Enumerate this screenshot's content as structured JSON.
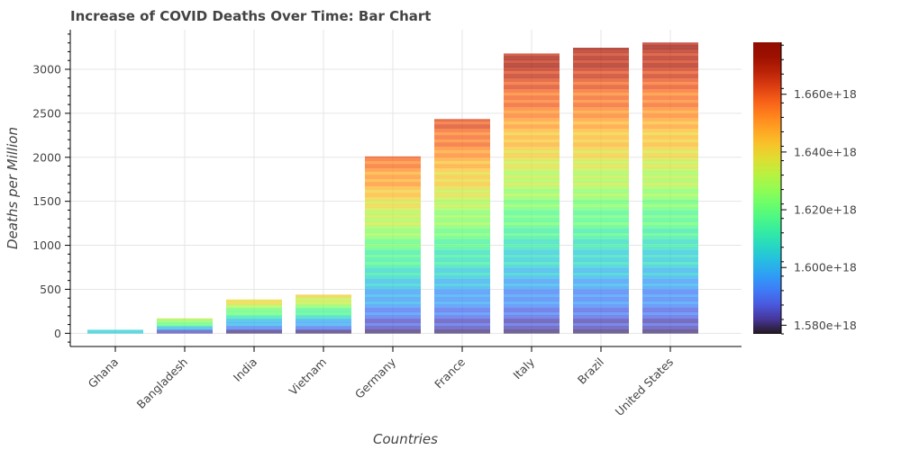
{
  "chart_data": {
    "type": "bar",
    "title": "Increase of COVID Deaths Over Time: Bar Chart",
    "xlabel": "Countries",
    "ylabel": "Deaths per Million",
    "categories": [
      "Ghana",
      "Bangladesh",
      "India",
      "Vietnam",
      "Germany",
      "France",
      "Italy",
      "Brazil",
      "United States"
    ],
    "values": [
      40,
      170,
      385,
      440,
      2010,
      2435,
      3180,
      3245,
      3305
    ],
    "ylim": [
      -150,
      3450
    ],
    "yticks": [
      "0",
      "500",
      "1000",
      "1500",
      "2000",
      "2500",
      "3000"
    ],
    "ytick_values": [
      0,
      500,
      1000,
      1500,
      2000,
      2500,
      3000
    ],
    "grid": true,
    "colorbar": {
      "colormap": "turbo",
      "range": [
        1577000000000000000,
        1678000000000000000
      ],
      "ticks": [
        "1.580e+18",
        "1.600e+18",
        "1.620e+18",
        "1.640e+18",
        "1.660e+18"
      ],
      "tick_values": [
        1580000000000000000,
        1600000000000000000,
        1620000000000000000,
        1640000000000000000,
        1660000000000000000
      ]
    }
  }
}
